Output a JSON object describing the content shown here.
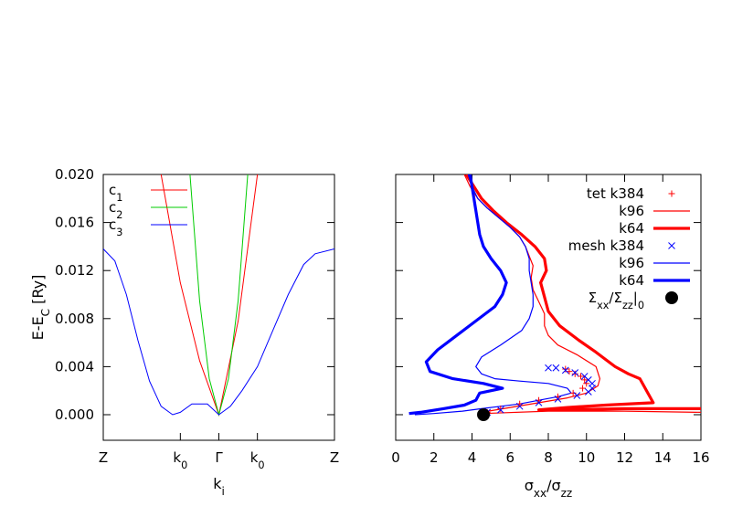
{
  "chart_data": [
    {
      "type": "line",
      "title": "",
      "ylabel": "E-E_C [Ry]",
      "xlabel": "k_i",
      "x_tick_labels": [
        "Z",
        "k_0",
        "Γ",
        "k_0",
        "Z"
      ],
      "y_ticks": [
        0.0,
        0.004,
        0.008,
        0.012,
        0.016,
        0.02
      ],
      "y_tick_labels": [
        "0.000",
        "0.004",
        "0.008",
        "0.012",
        "0.016",
        "0.020"
      ],
      "ylim": [
        0,
        0.02
      ],
      "grid": false,
      "legend": "top-left",
      "series": [
        {
          "name": "c_1",
          "color": "#ff0000",
          "x": [
            1.5,
            2.0,
            2.5,
            3.0,
            3.5,
            4.0
          ],
          "y": [
            0.02,
            0.011,
            0.0045,
            0.0,
            0.0078,
            0.02
          ]
        },
        {
          "name": "c_2",
          "color": "#00cc00",
          "x": [
            2.25,
            2.5,
            2.75,
            3.0,
            3.25,
            3.5,
            3.75
          ],
          "y": [
            0.02,
            0.0095,
            0.003,
            0.0,
            0.003,
            0.0095,
            0.02
          ]
        },
        {
          "name": "c_3",
          "color": "#0000ff",
          "x": [
            0.0,
            0.3,
            0.6,
            0.9,
            1.2,
            1.5,
            1.8,
            2.0,
            2.3,
            2.7,
            3.0,
            3.3,
            3.6,
            4.0,
            4.4,
            4.8,
            5.2,
            5.5,
            6.0
          ],
          "y": [
            0.0138,
            0.0128,
            0.01,
            0.0062,
            0.0028,
            0.0007,
            0.0,
            0.0002,
            0.0009,
            0.0009,
            0.0,
            0.0007,
            0.002,
            0.004,
            0.007,
            0.01,
            0.0125,
            0.0134,
            0.0138
          ]
        }
      ]
    },
    {
      "type": "line",
      "title": "",
      "xlabel": "σ_xx/σ_zz",
      "ylabel": "",
      "xlim": [
        0,
        16
      ],
      "ylim": [
        0,
        0.02
      ],
      "x_ticks": [
        0,
        2,
        4,
        6,
        8,
        10,
        12,
        14,
        16
      ],
      "x_tick_labels": [
        "0",
        "2",
        "4",
        "6",
        "8",
        "10",
        "12",
        "14",
        "16"
      ],
      "grid": false,
      "legend": "top-right",
      "series": [
        {
          "name": "tet k384",
          "color": "#ff0000",
          "marker": "plus",
          "style": "points",
          "x": [
            8.9,
            9.1,
            9.4,
            9.7,
            9.9,
            10.0,
            9.8,
            9.3,
            8.5,
            7.5,
            6.5,
            5.5,
            4.8
          ],
          "y": [
            0.0038,
            0.0036,
            0.0034,
            0.0032,
            0.0029,
            0.0026,
            0.0022,
            0.0018,
            0.0015,
            0.0012,
            0.0009,
            0.0005,
            0.0002
          ]
        },
        {
          "name": "k96",
          "color": "#ff0000",
          "width": 1.2,
          "x": [
            3.6,
            3.9,
            4.3,
            4.8,
            5.4,
            6.0,
            6.5,
            6.8,
            7.0,
            7.2,
            7.1,
            7.2,
            7.5,
            7.8,
            7.8,
            8.0,
            8.5,
            9.5,
            10.5,
            10.7,
            10.6,
            10.0,
            9.0,
            7.5,
            6.0,
            4.5,
            4.6,
            8.0,
            12.0,
            16.0
          ],
          "y": [
            0.02,
            0.019,
            0.018,
            0.0172,
            0.0164,
            0.0156,
            0.0148,
            0.014,
            0.0132,
            0.0124,
            0.0114,
            0.0104,
            0.0094,
            0.0084,
            0.0074,
            0.0066,
            0.0058,
            0.005,
            0.004,
            0.003,
            0.0024,
            0.0018,
            0.0014,
            0.001,
            0.0006,
            0.0002,
            0.0001,
            0.0003,
            0.0003,
            0.0002
          ]
        },
        {
          "name": "k64",
          "color": "#ff0000",
          "width": 3.2,
          "x": [
            3.7,
            4.1,
            4.5,
            5.1,
            5.8,
            6.6,
            7.3,
            7.8,
            7.9,
            7.6,
            7.8,
            8.0,
            8.6,
            9.6,
            10.5,
            11.0,
            11.5,
            12.2,
            12.8,
            13.5,
            11.0,
            9.0,
            7.5,
            9.0,
            12.0,
            16.0
          ],
          "y": [
            0.02,
            0.019,
            0.018,
            0.017,
            0.016,
            0.015,
            0.014,
            0.013,
            0.012,
            0.011,
            0.0098,
            0.0086,
            0.0074,
            0.0062,
            0.0052,
            0.0046,
            0.004,
            0.0034,
            0.003,
            0.001,
            0.0008,
            0.0006,
            0.0004,
            0.0004,
            0.0005,
            0.0005
          ]
        },
        {
          "name": "mesh k384",
          "color": "#0000ff",
          "marker": "cross",
          "style": "points",
          "x": [
            8.0,
            8.4,
            8.9,
            9.4,
            9.9,
            10.1,
            10.3,
            10.3,
            10.1,
            9.5,
            8.5,
            7.5,
            6.5,
            5.5,
            4.8
          ],
          "y": [
            0.0039,
            0.0039,
            0.0037,
            0.0035,
            0.0032,
            0.0029,
            0.0026,
            0.0022,
            0.0019,
            0.0016,
            0.0013,
            0.001,
            0.0007,
            0.0004,
            0.0002
          ]
        },
        {
          "name": "k96",
          "color": "#0000ff",
          "width": 1.2,
          "x": [
            3.8,
            4.0,
            4.3,
            4.8,
            5.4,
            6.0,
            6.5,
            6.8,
            7.0,
            7.0,
            7.1,
            7.2,
            7.2,
            7.0,
            6.6,
            5.5,
            4.5,
            4.2,
            4.5,
            5.2,
            6.5,
            8.0,
            9.0,
            9.2,
            8.5,
            7.5,
            6.5,
            5.5,
            4.5,
            3.5,
            2.0,
            1.0
          ],
          "y": [
            0.02,
            0.019,
            0.018,
            0.0172,
            0.0164,
            0.0156,
            0.0148,
            0.014,
            0.013,
            0.012,
            0.011,
            0.01,
            0.009,
            0.008,
            0.007,
            0.0058,
            0.0048,
            0.004,
            0.0034,
            0.003,
            0.0028,
            0.0026,
            0.0022,
            0.0018,
            0.0015,
            0.0012,
            0.0009,
            0.0007,
            0.0005,
            0.0003,
            0.0001,
            0.0
          ]
        },
        {
          "name": "k64",
          "color": "#0000ff",
          "width": 3.2,
          "x": [
            3.9,
            4.0,
            4.1,
            4.2,
            4.3,
            4.4,
            4.6,
            5.0,
            5.5,
            5.8,
            5.6,
            5.2,
            4.2,
            3.2,
            2.2,
            1.6,
            1.8,
            3.0,
            4.6,
            5.6,
            4.4,
            4.2,
            3.6,
            2.5,
            1.3,
            0.7
          ],
          "y": [
            0.02,
            0.019,
            0.018,
            0.017,
            0.016,
            0.015,
            0.014,
            0.013,
            0.012,
            0.011,
            0.01,
            0.009,
            0.0078,
            0.0066,
            0.0054,
            0.0044,
            0.0036,
            0.003,
            0.0026,
            0.0022,
            0.0018,
            0.0012,
            0.0008,
            0.0005,
            0.0002,
            0.0001
          ]
        },
        {
          "name": "Σ_xx/Σ_zz|_0",
          "color": "#000000",
          "marker": "dot",
          "style": "points",
          "x": [
            4.6
          ],
          "y": [
            0.0
          ]
        }
      ]
    }
  ]
}
